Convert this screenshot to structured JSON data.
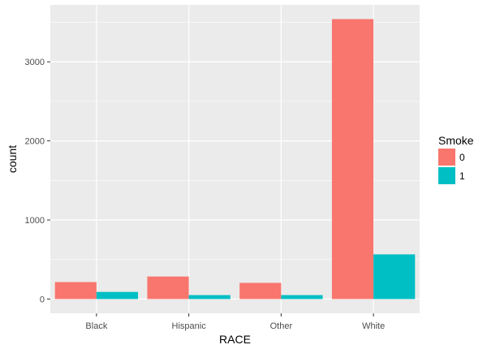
{
  "chart_data": {
    "type": "bar",
    "xlabel": "RACE",
    "ylabel": "count",
    "categories": [
      "Black",
      "Hispanic",
      "Other",
      "White"
    ],
    "series": [
      {
        "name": "0",
        "values": [
          215,
          285,
          205,
          3540
        ],
        "color": "#F8766D"
      },
      {
        "name": "1",
        "values": [
          90,
          50,
          50,
          565
        ],
        "color": "#00BFC4"
      }
    ],
    "ylim": [
      -180,
      3720
    ],
    "yticks": [
      0,
      1000,
      2000,
      3000
    ],
    "grid": true,
    "legend": {
      "title": "Smoke",
      "position": "right"
    },
    "panel_color": "#EBEBEB",
    "grid_color": "#FFFFFF"
  }
}
